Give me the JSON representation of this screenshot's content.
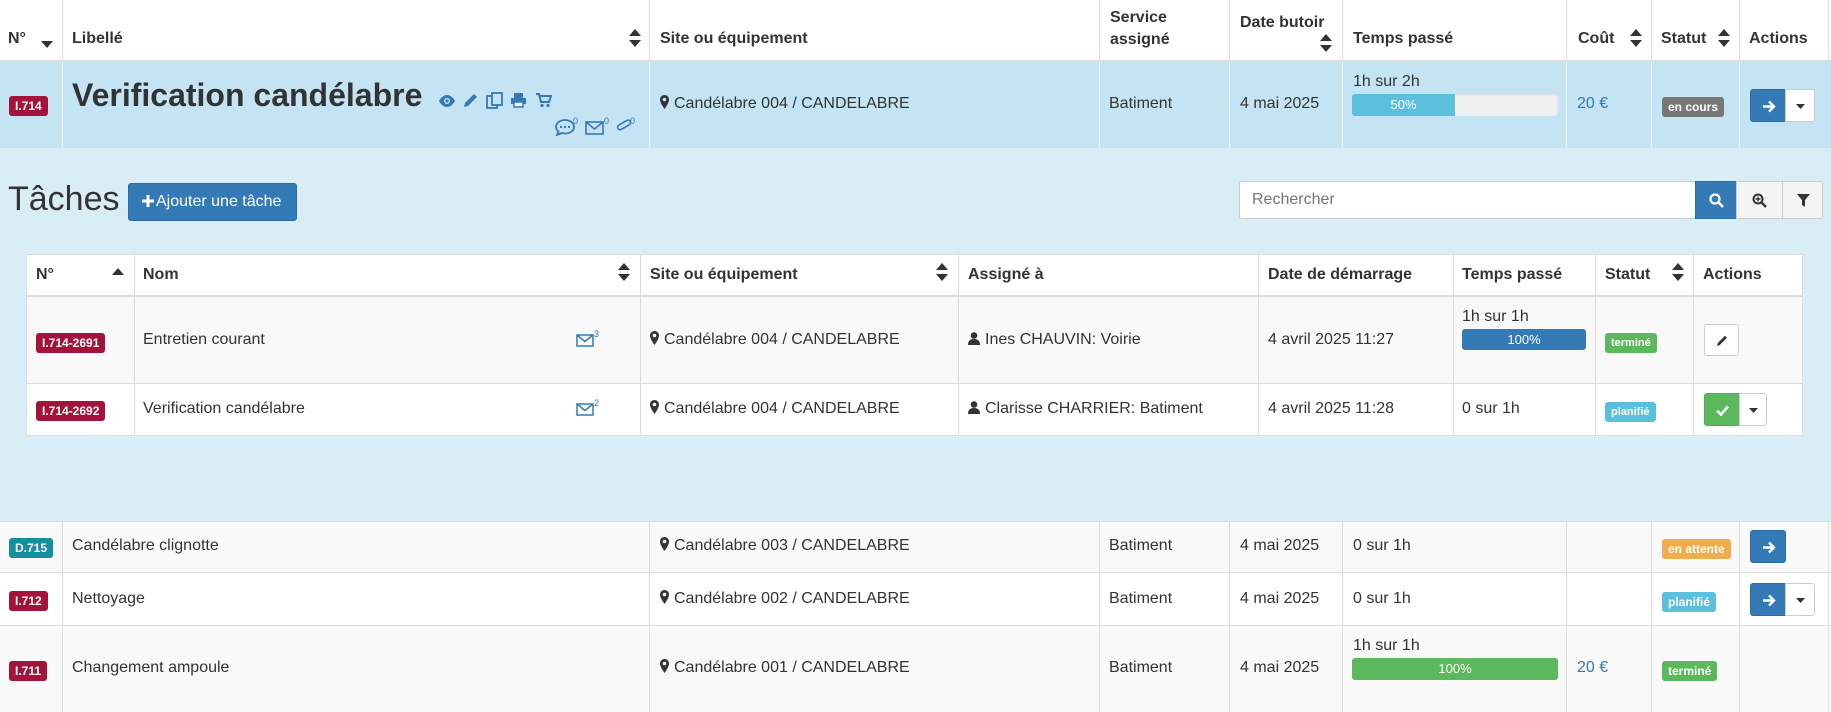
{
  "main_table": {
    "headers": {
      "num": "N°",
      "libelle": "Libellé",
      "site": "Site ou équipement",
      "service_line1": "Service",
      "service_line2": "assigné",
      "date_butoir": "Date butoir",
      "temps": "Temps passé",
      "cout": "Coût",
      "statut": "Statut",
      "actions": "Actions"
    },
    "expanded_row": {
      "id": "I.714",
      "title": "Verification candélabre",
      "site": "Candélabre 004 / CANDELABRE",
      "service": "Batiment",
      "date": "4 mai 2025",
      "time_text": "1h sur 2h",
      "progress_label": "50%",
      "progress_value": 0.5,
      "cost": "20 €",
      "status": "en cours",
      "comments_count": "0",
      "mails_count": "0",
      "attachments_count": "0"
    },
    "rows": [
      {
        "id": "D.715",
        "title": "Candélabre clignotte",
        "site": "Candélabre 003 / CANDELABRE",
        "service": "Batiment",
        "date": "4 mai 2025",
        "time_text": "0 sur 1h",
        "cost": "",
        "status": "en attente"
      },
      {
        "id": "I.712",
        "title": "Nettoyage",
        "site": "Candélabre 002 / CANDELABRE",
        "service": "Batiment",
        "date": "4 mai 2025",
        "time_text": "0 sur 1h",
        "cost": "",
        "status": "planifié"
      },
      {
        "id": "I.711",
        "title": "Changement ampoule",
        "site": "Candélabre 001 / CANDELABRE",
        "service": "Batiment",
        "date": "4 mai 2025",
        "time_text": "1h sur 1h",
        "progress_label": "100%",
        "progress_value": 1.0,
        "cost": "20 €",
        "status": "terminé"
      }
    ]
  },
  "tasks": {
    "title": "Tâches",
    "add_button": "Ajouter une tâche",
    "search_placeholder": "Rechercher",
    "headers": {
      "num": "N°",
      "nom": "Nom",
      "site": "Site ou équipement",
      "assigne": "Assigné à",
      "date": "Date de démarrage",
      "temps": "Temps passé",
      "statut": "Statut",
      "actions": "Actions"
    },
    "rows": [
      {
        "id": "I.714-2691",
        "name": "Entretien courant",
        "mail_count": "3",
        "site": "Candélabre 004 / CANDELABRE",
        "assignee": "Ines CHAUVIN: Voirie",
        "date": "4 avril 2025 11:27",
        "time_text": "1h sur 1h",
        "progress_label": "100%",
        "progress_value": 1.0,
        "status": "terminé"
      },
      {
        "id": "I.714-2692",
        "name": "Verification candélabre",
        "mail_count": "2",
        "site": "Candélabre 004 / CANDELABRE",
        "assignee": "Clarisse CHARRIER: Batiment",
        "date": "4 avril 2025 11:28",
        "time_text": "0 sur 1h",
        "status": "planifié"
      }
    ]
  },
  "colors": {
    "expanded_bg": "#d9edf7",
    "expanded_row_bg": "#c4e3f3",
    "primary": "#337ab7",
    "label_red": "#a4133c",
    "label_teal": "#138fa0",
    "label_green": "#5cb85c",
    "label_cyan": "#5bc0de",
    "label_orange": "#f0ad4e",
    "label_gray": "#777777",
    "progress_info": "#5bc0de",
    "progress_success": "#5cb85c"
  }
}
